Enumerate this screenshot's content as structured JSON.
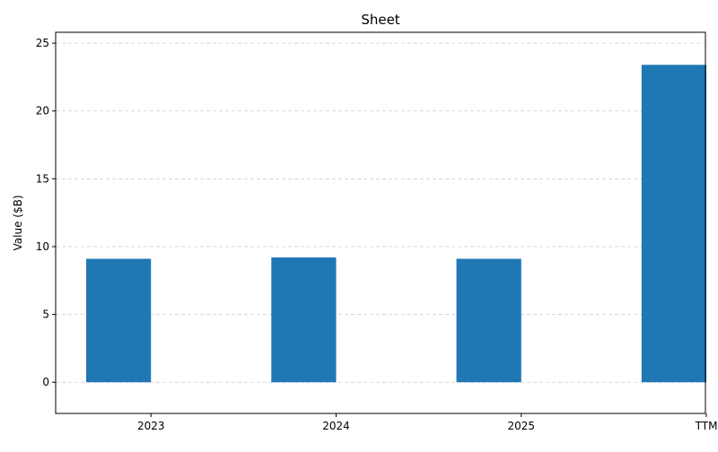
{
  "chart_data": {
    "type": "bar",
    "title": "Sheet",
    "xlabel": "",
    "ylabel": "Value ($B)",
    "categories": [
      "2023",
      "2024",
      "2025",
      "TTM"
    ],
    "values": [
      9.1,
      9.2,
      9.1,
      23.4
    ],
    "ylim": [
      -2.3,
      25.8
    ],
    "yticks": [
      0,
      5,
      10,
      15,
      20,
      25
    ],
    "grid": "y-dashed",
    "bar_color": "#1f77b4",
    "grid_color": "#cccccc"
  }
}
